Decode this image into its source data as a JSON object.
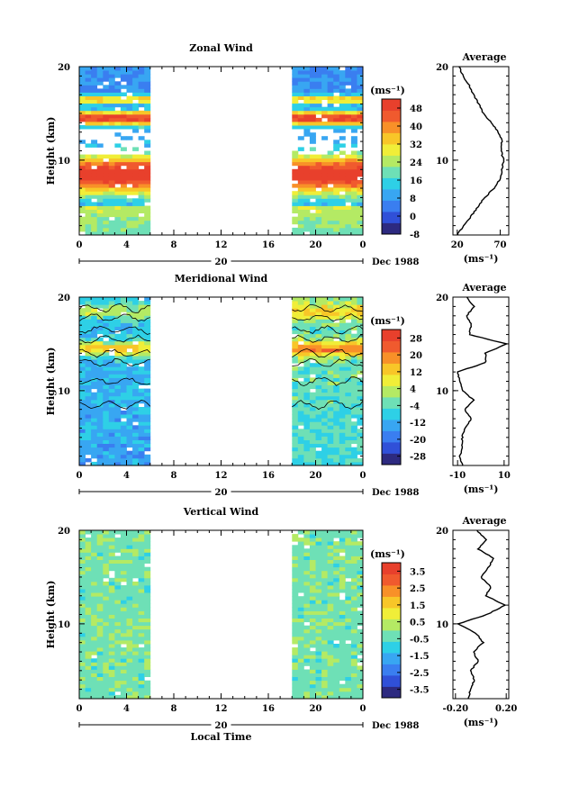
{
  "colors": {
    "scale": [
      "#2d2a80",
      "#3050d8",
      "#3a7ef0",
      "#38a6f2",
      "#2ed0e6",
      "#6ee0b6",
      "#b4ea64",
      "#f0ee38",
      "#f8c628",
      "#f89028",
      "#f05a2e",
      "#e8402c"
    ],
    "background": "#ffffff",
    "axis": "#000000"
  },
  "chart_data": [
    {
      "type": "heatmap",
      "title": "Zonal Wind",
      "ylabel": "Height (km)",
      "ylim": [
        2,
        20
      ],
      "y_ticks": [
        "20",
        "10"
      ],
      "x_ticks": [
        "0",
        "4",
        "8",
        "12",
        "16",
        "20",
        "0"
      ],
      "date_tick": "20",
      "date_label": "Dec 1988",
      "xlabel": "",
      "colorbar": {
        "unit": "(ms⁻¹)",
        "ticks": [
          "48",
          "40",
          "32",
          "24",
          "16",
          "8",
          "0",
          "-8"
        ],
        "range": [
          -8,
          52
        ]
      },
      "data_segments_local_time": [
        [
          0,
          6
        ],
        [
          18,
          24
        ]
      ],
      "profile_kind": "zonal",
      "average_profile": {
        "title": "Average",
        "xlabel": "(ms⁻¹)",
        "x_ticks": [
          "20",
          "70"
        ],
        "y_ticks": [
          "20",
          "10"
        ],
        "xlim": [
          15,
          80
        ],
        "heights": [
          2,
          3,
          4,
          5,
          6,
          7,
          8,
          9,
          10,
          11,
          12,
          13,
          14,
          15,
          16,
          17,
          18,
          19,
          20
        ],
        "values": [
          20,
          28,
          36,
          44,
          52,
          63,
          70,
          72,
          74,
          71,
          72,
          68,
          60,
          50,
          45,
          39,
          34,
          27,
          22
        ]
      }
    },
    {
      "type": "heatmap",
      "title": "Meridional Wind",
      "ylabel": "Height (km)",
      "ylim": [
        2,
        20
      ],
      "y_ticks": [
        "20",
        "10"
      ],
      "x_ticks": [
        "0",
        "4",
        "8",
        "12",
        "16",
        "20",
        "0"
      ],
      "date_tick": "20",
      "date_label": "Dec 1988",
      "xlabel": "",
      "colorbar": {
        "unit": "(ms⁻¹)",
        "ticks": [
          "28",
          "20",
          "12",
          "4",
          "-4",
          "-12",
          "-20",
          "-28"
        ],
        "range": [
          -32,
          32
        ]
      },
      "data_segments_local_time": [
        [
          0,
          6
        ],
        [
          18,
          24
        ]
      ],
      "profile_kind": "meridional",
      "average_profile": {
        "title": "Average",
        "xlabel": "(ms⁻¹)",
        "x_ticks": [
          "-10",
          "10"
        ],
        "y_ticks": [
          "20",
          "10"
        ],
        "xlim": [
          -12,
          12
        ],
        "heights": [
          2,
          3,
          4,
          5,
          6,
          7,
          8,
          9,
          10,
          11,
          12,
          13,
          14,
          15,
          16,
          17,
          18,
          19,
          20
        ],
        "values": [
          -8,
          -9,
          -8,
          -8,
          -7,
          -4,
          -7,
          -3,
          -8,
          -9,
          -10,
          2,
          2,
          11,
          -5,
          -4,
          -6,
          -3,
          -6
        ]
      }
    },
    {
      "type": "heatmap",
      "title": "Vertical Wind",
      "ylabel": "Height (km)",
      "ylim": [
        2,
        20
      ],
      "y_ticks": [
        "20",
        "10"
      ],
      "x_ticks": [
        "0",
        "4",
        "8",
        "12",
        "16",
        "20",
        "0"
      ],
      "date_tick": "20",
      "date_label": "Dec 1988",
      "xlabel": "Local Time",
      "colorbar": {
        "unit": "(ms⁻¹)",
        "ticks": [
          "3.5",
          "2.5",
          "1.5",
          "0.5",
          "-0.5",
          "-1.5",
          "-2.5",
          "-3.5"
        ],
        "range": [
          -4,
          4
        ]
      },
      "data_segments_local_time": [
        [
          0,
          6
        ],
        [
          18,
          24
        ]
      ],
      "profile_kind": "vertical",
      "average_profile": {
        "title": "Average",
        "xlabel": "(ms⁻¹)",
        "x_ticks": [
          "-0.20",
          "0.20"
        ],
        "y_ticks": [
          "20",
          "10"
        ],
        "xlim": [
          -0.22,
          0.22
        ],
        "heights": [
          2,
          3,
          4,
          5,
          6,
          7,
          8,
          9,
          10,
          11,
          12,
          13,
          14,
          15,
          16,
          17,
          18,
          19,
          20
        ],
        "values": [
          -0.1,
          -0.08,
          -0.05,
          -0.08,
          -0.02,
          -0.06,
          0.02,
          -0.04,
          -0.18,
          0.05,
          0.19,
          0.04,
          0.08,
          0.0,
          0.06,
          0.1,
          -0.02,
          0.04,
          -0.03
        ]
      }
    }
  ]
}
